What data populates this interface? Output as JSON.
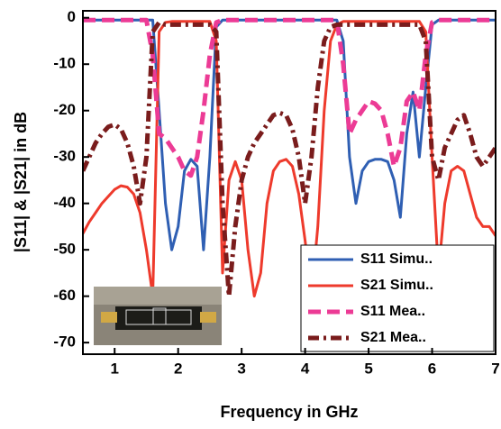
{
  "chart_data": {
    "type": "line",
    "xlabel": "Frequency in GHz",
    "ylabel": "|S11| & |S21| in dB",
    "xlim": [
      0.5,
      7
    ],
    "ylim": [
      -72.5,
      1.5
    ],
    "xticks": [
      1,
      2,
      3,
      4,
      5,
      6,
      7
    ],
    "yticks": [
      0,
      -10,
      -20,
      -30,
      -40,
      -50,
      -60,
      -70
    ],
    "legend": "lower right",
    "x": [
      0.5,
      0.6,
      0.7,
      0.8,
      0.9,
      1.0,
      1.1,
      1.2,
      1.3,
      1.4,
      1.5,
      1.6,
      1.7,
      1.8,
      1.9,
      2.0,
      2.1,
      2.2,
      2.3,
      2.4,
      2.5,
      2.6,
      2.7,
      2.8,
      2.9,
      3.0,
      3.1,
      3.2,
      3.3,
      3.4,
      3.5,
      3.6,
      3.7,
      3.8,
      3.9,
      4.0,
      4.1,
      4.2,
      4.3,
      4.4,
      4.5,
      4.6,
      4.7,
      4.8,
      4.9,
      5.0,
      5.1,
      5.2,
      5.3,
      5.4,
      5.5,
      5.6,
      5.7,
      5.8,
      5.9,
      6.0,
      6.1,
      6.2,
      6.3,
      6.4,
      6.5,
      6.6,
      6.7,
      6.8,
      6.9,
      7.0
    ],
    "series": [
      {
        "name": "S11 Simu..",
        "color": "#2f5fb3",
        "dash": "solid",
        "values": [
          -0.5,
          -0.5,
          -0.5,
          -0.5,
          -0.5,
          -0.5,
          -0.5,
          -0.5,
          -0.5,
          -0.5,
          -0.5,
          -0.5,
          -20,
          -40,
          -50,
          -45,
          -33,
          -30.5,
          -32,
          -50,
          -30,
          -2,
          -0.5,
          -0.5,
          -0.5,
          -0.5,
          -0.5,
          -0.5,
          -0.5,
          -0.5,
          -0.5,
          -0.5,
          -0.5,
          -0.5,
          -0.5,
          -0.5,
          -0.5,
          -0.5,
          -0.5,
          -0.5,
          -0.5,
          -5,
          -30,
          -40,
          -33,
          -31,
          -30.5,
          -30.5,
          -31,
          -35,
          -43,
          -25,
          -16,
          -30,
          -15,
          -1.5,
          -0.5,
          -0.5,
          -0.5,
          -0.5,
          -0.5,
          -0.5,
          -0.5,
          -0.5,
          -0.5,
          -0.5
        ]
      },
      {
        "name": "S21 Simu..",
        "color": "#ee3a2c",
        "dash": "solid",
        "values": [
          -46.5,
          -44,
          -42,
          -40,
          -38.5,
          -37,
          -36.2,
          -36.5,
          -38,
          -42,
          -50,
          -60,
          -3,
          -1,
          -0.8,
          -0.8,
          -0.8,
          -0.8,
          -0.8,
          -0.8,
          -0.8,
          -5,
          -55,
          -35,
          -31,
          -35,
          -50,
          -60,
          -55,
          -40,
          -33,
          -31,
          -30.5,
          -32,
          -38,
          -48,
          -60,
          -45,
          -20,
          -5,
          -1.5,
          -0.8,
          -0.8,
          -0.8,
          -0.8,
          -0.8,
          -0.8,
          -0.8,
          -0.8,
          -0.8,
          -0.8,
          -0.8,
          -0.8,
          -0.8,
          -3,
          -30,
          -55,
          -40,
          -33,
          -32,
          -33,
          -38,
          -43,
          -45,
          -45,
          -47
        ]
      },
      {
        "name": "S11 Mea..",
        "color": "#ec3b95",
        "dash": "dash",
        "values": [
          -0.5,
          -0.5,
          -0.5,
          -0.5,
          -0.5,
          -0.5,
          -0.5,
          -0.5,
          -0.5,
          -0.5,
          -0.5,
          -8,
          -25,
          -26,
          -28,
          -30,
          -33,
          -34,
          -30,
          -20,
          -8,
          -1,
          -0.5,
          -0.5,
          -0.5,
          -0.5,
          -0.5,
          -0.5,
          -0.5,
          -0.5,
          -0.5,
          -0.5,
          -0.5,
          -0.5,
          -0.5,
          -0.5,
          -0.5,
          -0.5,
          -0.5,
          -0.5,
          -0.5,
          -10,
          -25,
          -22,
          -20,
          -18,
          -18.5,
          -20,
          -25,
          -32,
          -28,
          -18,
          -16,
          -20,
          -8,
          -1,
          -0.5,
          -0.5,
          -0.5,
          -0.5,
          -0.5,
          -0.5,
          -0.5,
          -0.5,
          -0.5,
          -0.5
        ]
      },
      {
        "name": "S21 Mea..",
        "color": "#7a1c1c",
        "dash": "dashdot",
        "values": [
          -33,
          -30,
          -27,
          -25,
          -23.5,
          -23,
          -24,
          -27,
          -32,
          -40,
          -30,
          -3,
          -1,
          -1.5,
          -1.5,
          -1.5,
          -1.5,
          -1.5,
          -1.5,
          -1.5,
          -1.5,
          -3,
          -40,
          -60,
          -45,
          -35,
          -30,
          -27,
          -25,
          -23,
          -21,
          -20.5,
          -21,
          -24,
          -30,
          -40,
          -30,
          -15,
          -5,
          -2,
          -1.5,
          -1.5,
          -1.5,
          -1.5,
          -1.5,
          -1.5,
          -1.5,
          -1.5,
          -1.5,
          -1.5,
          -1.5,
          -1.5,
          -1.5,
          -1.5,
          -5,
          -30,
          -35,
          -28,
          -25,
          -22,
          -21,
          -25,
          -30,
          -32,
          -30,
          -28
        ]
      }
    ]
  }
}
